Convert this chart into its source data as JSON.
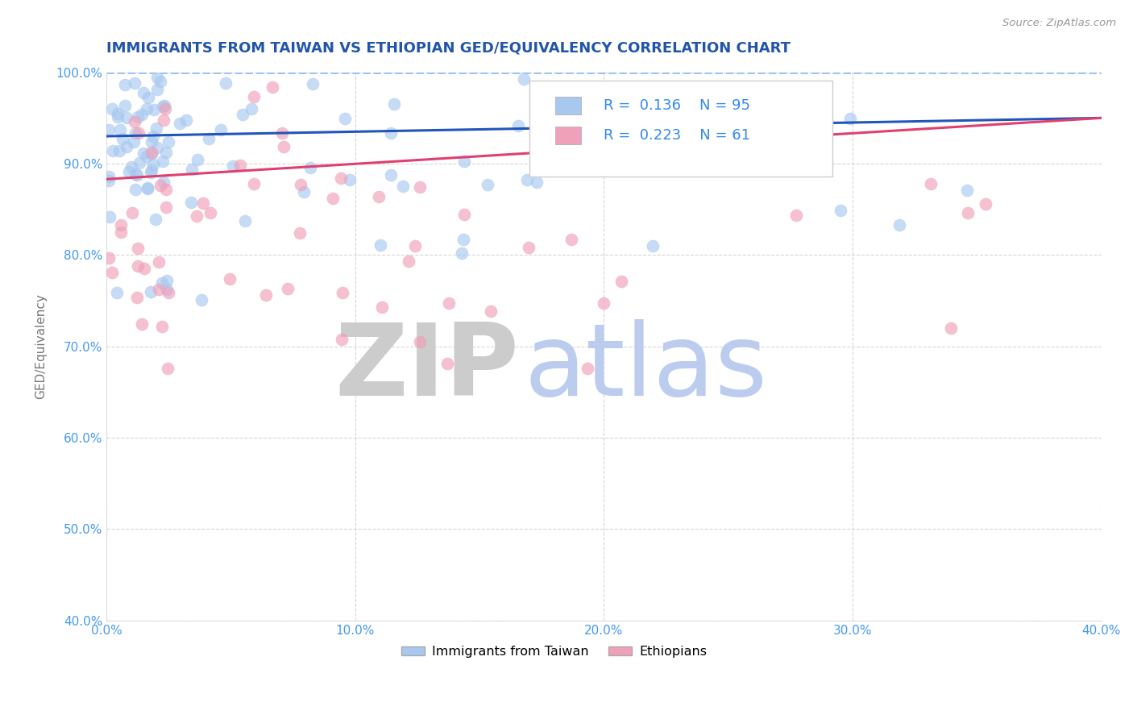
{
  "title": "IMMIGRANTS FROM TAIWAN VS ETHIOPIAN GED/EQUIVALENCY CORRELATION CHART",
  "source": "Source: ZipAtlas.com",
  "ylabel": "GED/Equivalency",
  "legend_label_1": "Immigrants from Taiwan",
  "legend_label_2": "Ethiopians",
  "r1": 0.136,
  "n1": 95,
  "r2": 0.223,
  "n2": 61,
  "color_blue": "#A8C8F0",
  "color_pink": "#F0A0B8",
  "color_blue_line": "#2255BB",
  "color_pink_line": "#E04070",
  "color_dashed": "#88BBEE",
  "xlim": [
    0.0,
    0.4
  ],
  "ylim": [
    0.4,
    1.0
  ],
  "xticks": [
    0.0,
    0.1,
    0.2,
    0.3,
    0.4
  ],
  "yticks": [
    0.4,
    0.5,
    0.6,
    0.7,
    0.8,
    0.9,
    1.0
  ],
  "ytick_labels": [
    "40.0%",
    "50.0%",
    "60.0%",
    "70.0%",
    "80.0%",
    "90.0%",
    "100.0%"
  ],
  "xtick_labels": [
    "0.0%",
    "10.0%",
    "20.0%",
    "30.0%",
    "40.0%"
  ],
  "background_color": "#FFFFFF",
  "grid_color": "#CCCCCC",
  "tick_color": "#4499EE",
  "title_color": "#2255AA",
  "source_color": "#999999",
  "ylabel_color": "#777777",
  "watermark_zip_color": "#CCCCCC",
  "watermark_atlas_color": "#BBCCEE",
  "legend_text_color": "#3388EE"
}
